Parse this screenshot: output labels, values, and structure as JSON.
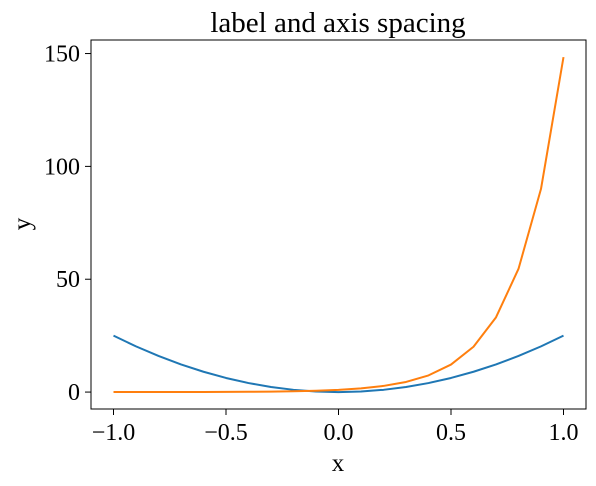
{
  "chart_data": {
    "type": "line",
    "title": "label and axis spacing",
    "xlabel": "x",
    "ylabel": "y",
    "xlim": [
      -1.1,
      1.1
    ],
    "ylim": [
      -7.5,
      156
    ],
    "xticks": [
      -1.0,
      -0.5,
      0.0,
      0.5,
      1.0
    ],
    "xtick_labels": [
      "−1.0",
      "−0.5",
      "0.0",
      "0.5",
      "1.0"
    ],
    "yticks": [
      0,
      50,
      100,
      150
    ],
    "ytick_labels": [
      "0",
      "50",
      "100",
      "150"
    ],
    "grid": false,
    "legend": false,
    "series": [
      {
        "color": "#1f77b4",
        "x": [
          -1.0,
          -0.9,
          -0.8,
          -0.7,
          -0.6,
          -0.5,
          -0.4,
          -0.3,
          -0.2,
          -0.1,
          0.0,
          0.1,
          0.2,
          0.3,
          0.4,
          0.5,
          0.6,
          0.7,
          0.8,
          0.9,
          1.0
        ],
        "y": [
          25.0,
          20.25,
          16.0,
          12.25,
          9.0,
          6.25,
          4.0,
          2.25,
          1.0,
          0.25,
          0.0,
          0.25,
          1.0,
          2.25,
          4.0,
          6.25,
          9.0,
          12.25,
          16.0,
          20.25,
          25.0
        ]
      },
      {
        "color": "#ff7f0e",
        "x": [
          -1.0,
          -0.9,
          -0.8,
          -0.7,
          -0.6,
          -0.5,
          -0.4,
          -0.3,
          -0.2,
          -0.1,
          0.0,
          0.1,
          0.2,
          0.3,
          0.4,
          0.5,
          0.6,
          0.7,
          0.8,
          0.9,
          1.0
        ],
        "y": [
          0.01,
          0.01,
          0.02,
          0.03,
          0.05,
          0.08,
          0.14,
          0.22,
          0.37,
          0.61,
          1.0,
          1.65,
          2.72,
          4.48,
          7.39,
          12.18,
          20.09,
          33.12,
          54.6,
          90.02,
          148.41
        ]
      }
    ]
  }
}
